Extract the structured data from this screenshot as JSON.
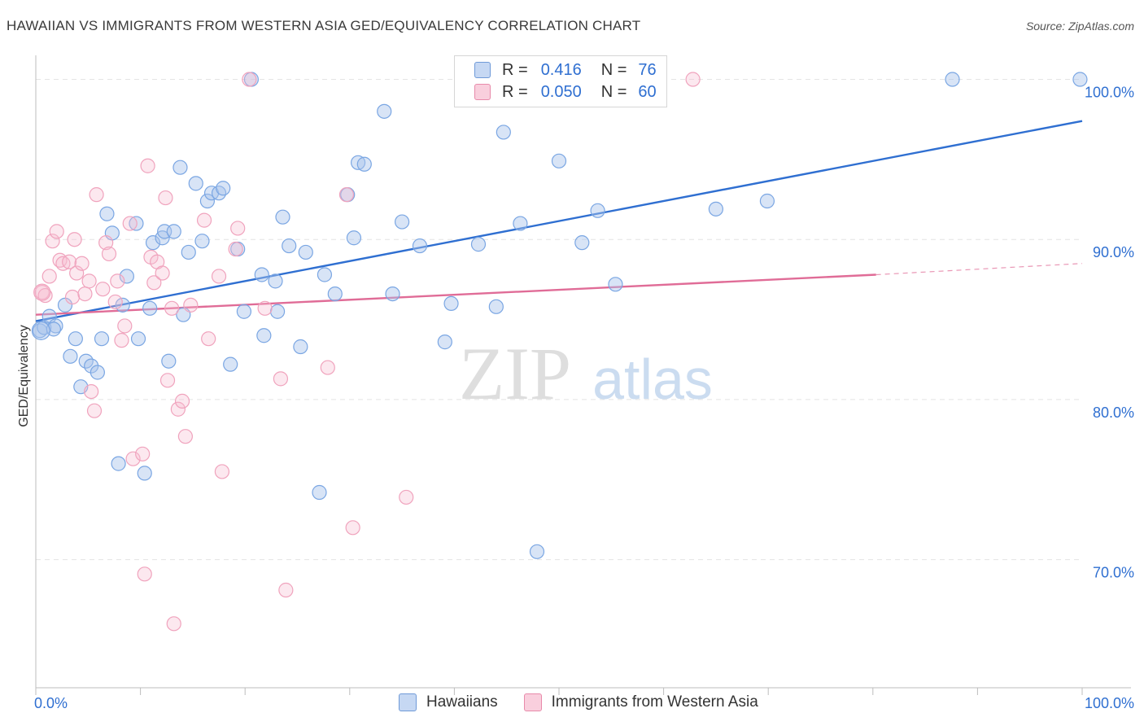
{
  "title": "HAWAIIAN VS IMMIGRANTS FROM WESTERN ASIA GED/EQUIVALENCY CORRELATION CHART",
  "source": "Source: ZipAtlas.com",
  "watermark": {
    "zip": "ZIP",
    "atlas": "atlas"
  },
  "legend": {
    "r_label": "R =",
    "n_label": "N =",
    "rows": [
      {
        "r": "0.416",
        "n": "76",
        "color": "#a9c4ec",
        "border": "#6f9ad8"
      },
      {
        "r": "0.050",
        "n": "60",
        "color": "#f6bcd0",
        "border": "#e88aaa"
      }
    ]
  },
  "bottom_legend": [
    {
      "label": "Hawaiians",
      "color": "#a9c4ec",
      "border": "#6f9ad8"
    },
    {
      "label": "Immigrants from Western Asia",
      "color": "#f6bcd0",
      "border": "#e88aaa"
    }
  ],
  "chart_data": {
    "type": "scatter",
    "ylabel": "GED/Equivalency",
    "xlabel": "",
    "xlim": [
      0,
      100
    ],
    "ylim": [
      62,
      101.5
    ],
    "x_tick_labels": [
      {
        "value": 0,
        "label": "0.0%"
      },
      {
        "value": 100,
        "label": "100.0%"
      }
    ],
    "y_tick_labels": [
      {
        "value": 100,
        "label": "100.0%"
      },
      {
        "value": 90,
        "label": "90.0%"
      },
      {
        "value": 80,
        "label": "80.0%"
      },
      {
        "value": 70,
        "label": "70.0%"
      }
    ],
    "grid": true,
    "series": [
      {
        "name": "Hawaiians",
        "color": "#7aa6e3",
        "line_color": "#2f6fd1",
        "trend": {
          "x": [
            0,
            100
          ],
          "y": [
            84.9,
            97.4
          ]
        },
        "points": [
          [
            0.4,
            84.3
          ],
          [
            0.8,
            84.5
          ],
          [
            1.3,
            85.2
          ],
          [
            1.9,
            84.6
          ],
          [
            1.7,
            84.4
          ],
          [
            2.8,
            85.9
          ],
          [
            3.3,
            82.7
          ],
          [
            3.8,
            83.8
          ],
          [
            4.3,
            80.8
          ],
          [
            4.8,
            82.4
          ],
          [
            5.3,
            82.1
          ],
          [
            5.9,
            81.7
          ],
          [
            6.3,
            83.8
          ],
          [
            6.8,
            91.6
          ],
          [
            7.3,
            90.4
          ],
          [
            7.9,
            76.0
          ],
          [
            8.3,
            85.9
          ],
          [
            8.7,
            87.7
          ],
          [
            9.6,
            91.0
          ],
          [
            9.8,
            83.8
          ],
          [
            10.4,
            75.4
          ],
          [
            10.9,
            85.7
          ],
          [
            11.2,
            89.8
          ],
          [
            12.1,
            90.1
          ],
          [
            12.3,
            90.5
          ],
          [
            12.7,
            82.4
          ],
          [
            13.2,
            90.5
          ],
          [
            13.8,
            94.5
          ],
          [
            14.1,
            85.3
          ],
          [
            14.6,
            89.2
          ],
          [
            15.3,
            93.5
          ],
          [
            15.9,
            89.9
          ],
          [
            16.4,
            92.4
          ],
          [
            16.8,
            92.9
          ],
          [
            17.5,
            92.9
          ],
          [
            17.9,
            93.2
          ],
          [
            18.6,
            82.2
          ],
          [
            19.3,
            89.4
          ],
          [
            19.9,
            85.5
          ],
          [
            20.6,
            100.0
          ],
          [
            21.6,
            87.8
          ],
          [
            21.8,
            84.0
          ],
          [
            22.9,
            87.4
          ],
          [
            23.1,
            85.5
          ],
          [
            23.6,
            91.4
          ],
          [
            24.2,
            89.6
          ],
          [
            25.3,
            83.3
          ],
          [
            25.8,
            89.2
          ],
          [
            27.1,
            74.2
          ],
          [
            27.6,
            87.8
          ],
          [
            28.6,
            86.6
          ],
          [
            29.8,
            92.8
          ],
          [
            30.4,
            90.1
          ],
          [
            30.8,
            94.8
          ],
          [
            31.4,
            94.7
          ],
          [
            33.3,
            98.0
          ],
          [
            34.1,
            86.6
          ],
          [
            35.0,
            91.1
          ],
          [
            36.7,
            89.6
          ],
          [
            39.1,
            83.6
          ],
          [
            39.7,
            86.0
          ],
          [
            42.3,
            89.7
          ],
          [
            44.0,
            85.8
          ],
          [
            44.7,
            96.7
          ],
          [
            46.3,
            91.0
          ],
          [
            47.9,
            70.5
          ],
          [
            50.0,
            94.9
          ],
          [
            52.2,
            89.8
          ],
          [
            53.7,
            91.8
          ],
          [
            55.4,
            87.2
          ],
          [
            65.0,
            91.9
          ],
          [
            69.9,
            92.4
          ],
          [
            87.6,
            100.0
          ],
          [
            99.8,
            100.0
          ]
        ]
      },
      {
        "name": "Immigrants from Western Asia",
        "color": "#f0a3bd",
        "line_color": "#e06c97",
        "trend": {
          "x": [
            0,
            80.3
          ],
          "y": [
            85.3,
            87.8
          ]
        },
        "trend_dashed": {
          "x": [
            80.3,
            100
          ],
          "y": [
            87.8,
            88.5
          ]
        },
        "points": [
          [
            0.6,
            86.7
          ],
          [
            0.9,
            86.5
          ],
          [
            1.3,
            87.7
          ],
          [
            1.6,
            89.9
          ],
          [
            2.0,
            90.5
          ],
          [
            2.3,
            88.7
          ],
          [
            2.6,
            88.5
          ],
          [
            3.2,
            88.6
          ],
          [
            3.5,
            86.4
          ],
          [
            3.7,
            90.0
          ],
          [
            3.9,
            87.9
          ],
          [
            4.4,
            88.5
          ],
          [
            4.7,
            86.6
          ],
          [
            5.1,
            87.4
          ],
          [
            5.3,
            80.5
          ],
          [
            5.6,
            79.3
          ],
          [
            5.8,
            92.8
          ],
          [
            6.4,
            86.9
          ],
          [
            6.7,
            89.8
          ],
          [
            7.0,
            89.1
          ],
          [
            7.6,
            86.1
          ],
          [
            7.8,
            87.4
          ],
          [
            8.2,
            83.7
          ],
          [
            8.5,
            84.6
          ],
          [
            9.0,
            91.0
          ],
          [
            9.3,
            76.3
          ],
          [
            10.2,
            76.6
          ],
          [
            10.4,
            69.1
          ],
          [
            10.7,
            94.6
          ],
          [
            11.0,
            88.9
          ],
          [
            11.3,
            87.3
          ],
          [
            11.6,
            88.6
          ],
          [
            12.1,
            87.9
          ],
          [
            12.4,
            92.6
          ],
          [
            12.6,
            81.2
          ],
          [
            13.0,
            85.7
          ],
          [
            13.2,
            66.0
          ],
          [
            13.6,
            79.4
          ],
          [
            14.0,
            79.9
          ],
          [
            14.3,
            77.7
          ],
          [
            14.8,
            85.9
          ],
          [
            16.1,
            91.2
          ],
          [
            16.5,
            83.8
          ],
          [
            17.5,
            87.7
          ],
          [
            17.8,
            75.5
          ],
          [
            19.1,
            89.4
          ],
          [
            19.3,
            90.7
          ],
          [
            20.4,
            100.0
          ],
          [
            21.9,
            85.7
          ],
          [
            23.4,
            81.3
          ],
          [
            23.9,
            68.1
          ],
          [
            27.9,
            82.0
          ],
          [
            29.7,
            92.8
          ],
          [
            30.3,
            72.0
          ],
          [
            35.4,
            73.9
          ],
          [
            62.8,
            100.0
          ]
        ]
      }
    ]
  }
}
